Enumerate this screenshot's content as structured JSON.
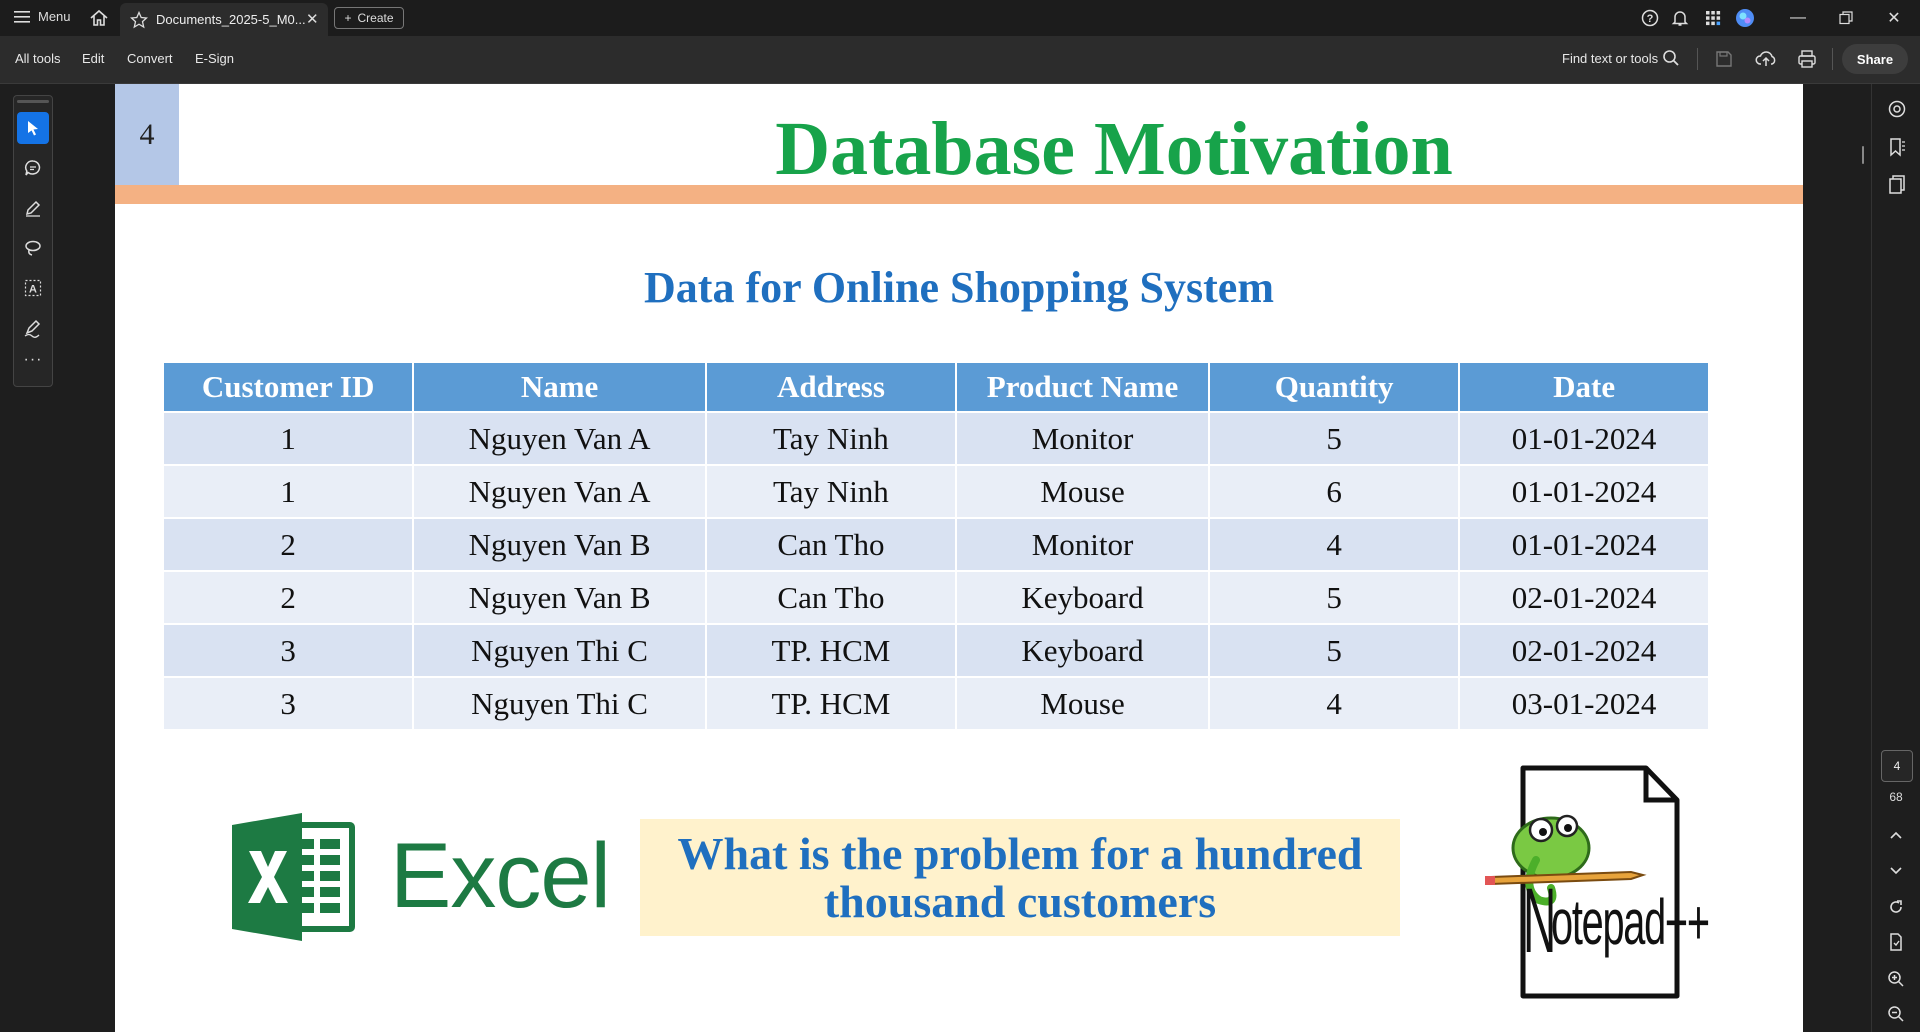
{
  "titlebar": {
    "menu_label": "Menu",
    "tab_title": "Documents_2025-5_M0...",
    "create_label": "Create"
  },
  "menubar": {
    "items": [
      "All tools",
      "Edit",
      "Convert",
      "E-Sign"
    ],
    "find_label": "Find text or tools",
    "share_label": "Share"
  },
  "slide": {
    "number": "4",
    "title": "Database Motivation",
    "subtitle": "Data for Online Shopping System",
    "table": {
      "headers": [
        "Customer ID",
        "Name",
        "Address",
        "Product Name",
        "Quantity",
        "Date"
      ],
      "rows": [
        [
          "1",
          "Nguyen Van A",
          "Tay Ninh",
          "Monitor",
          "5",
          "01-01-2024"
        ],
        [
          "1",
          "Nguyen Van A",
          "Tay Ninh",
          "Mouse",
          "6",
          "01-01-2024"
        ],
        [
          "2",
          "Nguyen Van B",
          "Can Tho",
          "Monitor",
          "4",
          "01-01-2024"
        ],
        [
          "2",
          "Nguyen Van B",
          "Can Tho",
          "Keyboard",
          "5",
          "02-01-2024"
        ],
        [
          "3",
          "Nguyen Thi C",
          "TP. HCM",
          "Keyboard",
          "5",
          "02-01-2024"
        ],
        [
          "3",
          "Nguyen Thi C",
          "TP. HCM",
          "Mouse",
          "4",
          "03-01-2024"
        ]
      ]
    },
    "excel_label": "Excel",
    "callout_line1": "What is the problem for a hundred",
    "callout_line2": "thousand customers",
    "notepad_label": "otepad++",
    "notepad_initial": "N"
  },
  "page_nav": {
    "current_page": "4",
    "total_pages": "68"
  },
  "colors": {
    "title_green": "#17a34a",
    "subtitle_blue": "#1f6fbf",
    "header_blue": "#5b9bd5",
    "orange_bar": "#f4b183",
    "accent_blue": "#1473e6"
  },
  "icons": [
    "menu-icon",
    "home-icon",
    "star-icon",
    "close-icon",
    "plus-icon",
    "help-icon",
    "bell-icon",
    "apps-icon",
    "avatar-icon",
    "minimize-icon",
    "restore-icon",
    "search-icon",
    "save-icon",
    "upload-icon",
    "print-icon",
    "select-icon",
    "comment-icon",
    "pen-icon",
    "lasso-icon",
    "text-select-icon",
    "sign-icon",
    "more-icon"
  ]
}
